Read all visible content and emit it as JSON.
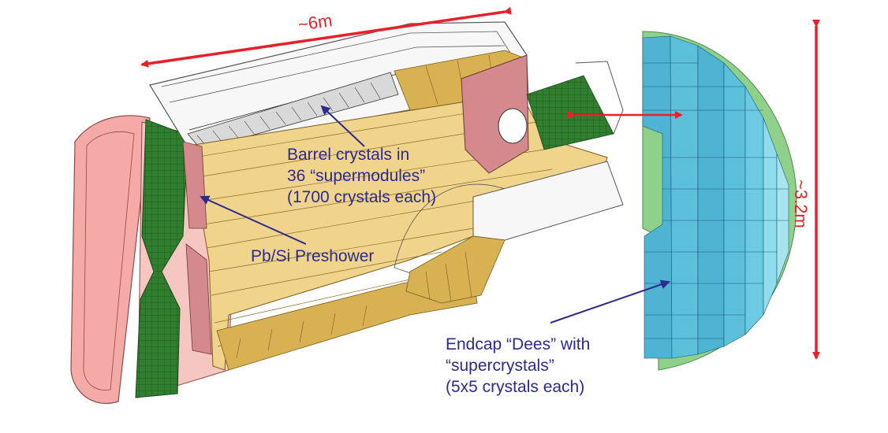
{
  "dimensions": {
    "length": "~6m",
    "height": "~3.2m"
  },
  "labels": {
    "barrel": [
      "Barrel crystals in",
      "36 “supermodules”",
      "(1700 crystals each)"
    ],
    "preshower": "Pb/Si Preshower",
    "endcap": [
      "Endcap “Dees” with",
      "“supercrystals”",
      "(5x5 crystals each)"
    ]
  },
  "colors": {
    "arrow_red": "#e8202a",
    "label_blue": "#2b2a8f",
    "barrel_crystal": "#f1d48c",
    "module_gold": "#d8b252",
    "preshower_pink": "#d48a8d",
    "endcap_disc": "#f4aaa6",
    "endcap_green": "#2f7f2f",
    "dee_cyan": "#5cc0da",
    "dee_rim": "#8fd18a"
  }
}
